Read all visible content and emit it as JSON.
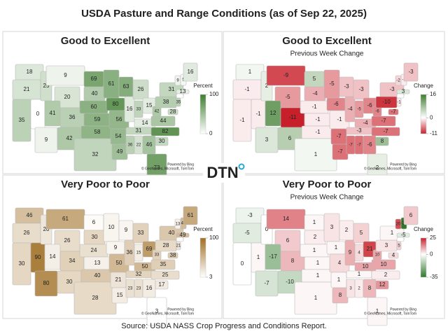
{
  "title": "USDA Pasture and Range Conditions (as of Sep 22, 2025)",
  "logo": "DTN",
  "attribution": [
    "Powered by Bing",
    "© GeoNames, Microsoft, TomTom"
  ],
  "source": "Source:  USDA NASS Crop Progress and Conditions Report.",
  "panels": [
    {
      "title": "Good to Excellent",
      "legend_title": "Percent",
      "clim": [
        0,
        100
      ],
      "cticks": [
        100,
        0
      ],
      "colors": [
        "#ffffff",
        "#3e7d2f"
      ],
      "values": [
        18,
        21,
        35,
        0,
        25,
        9,
        20,
        41,
        36,
        9,
        42,
        69,
        40,
        60,
        59,
        58,
        32,
        61,
        80,
        56,
        54,
        49,
        63,
        16,
        26,
        33,
        15,
        14,
        31,
        36,
        22,
        46,
        73,
        30,
        82,
        44,
        42,
        38,
        31,
        9,
        5,
        16,
        13,
        null,
        35,
        28
      ]
    },
    {
      "title": "Good to Excellent",
      "subtitle": "Previous Week Change",
      "legend_title": "Change",
      "clim": [
        -11,
        16
      ],
      "cticks": [
        16,
        0,
        -11
      ],
      "colors": [
        "#c8202a",
        "#ffffff",
        "#3e7d2f"
      ],
      "values": [
        1,
        -1,
        -1,
        -1,
        2,
        -9,
        -5,
        12,
        -11,
        3,
        6,
        5,
        -4,
        -1,
        -1,
        -1,
        1,
        -5,
        -6,
        -1,
        -7,
        -7,
        -3,
        -4,
        -3,
        -5,
        -6,
        -4,
        -3,
        -7,
        -7,
        -6,
        2,
        8,
        -7,
        -7,
        -6,
        -10,
        -3,
        -2,
        -1,
        -3,
        3,
        null,
        -1,
        -7
      ]
    },
    {
      "title": "Very Poor to Poor",
      "legend_title": "Percent",
      "clim": [
        3,
        100
      ],
      "cticks": [
        100,
        3
      ],
      "colors": [
        "#ffffff",
        "#a06f25"
      ],
      "values": [
        46,
        26,
        30,
        90,
        20,
        61,
        26,
        14,
        34,
        80,
        30,
        6,
        30,
        24,
        13,
        40,
        28,
        10,
        9,
        50,
        21,
        15,
        9,
        36,
        33,
        15,
        69,
        50,
        32,
        23,
        23,
        16,
        3,
        17,
        25,
        35,
        33,
        28,
        40,
        13,
        48,
        61,
        49,
        null,
        21,
        38
      ]
    },
    {
      "title": "Very Poor to Poor",
      "subtitle": "Previous Week Change",
      "legend_title": "Change",
      "clim": [
        -35,
        25
      ],
      "cticks": [
        25,
        0,
        -35
      ],
      "colors": [
        "#2f7a2a",
        "#ffffff",
        "#c8202a"
      ],
      "values": [
        -3,
        -5,
        0,
        1,
        0,
        14,
        6,
        -17,
        8,
        -7,
        -10,
        1,
        2,
        1,
        1,
        1,
        1,
        3,
        1,
        4,
        1,
        8,
        2,
        9,
        5,
        4,
        21,
        10,
        1,
        3,
        2,
        8,
        1,
        12,
        2,
        10,
        10,
        3,
        1,
        20,
        -35,
        6,
        -5,
        null,
        5,
        4
      ]
    }
  ]
}
